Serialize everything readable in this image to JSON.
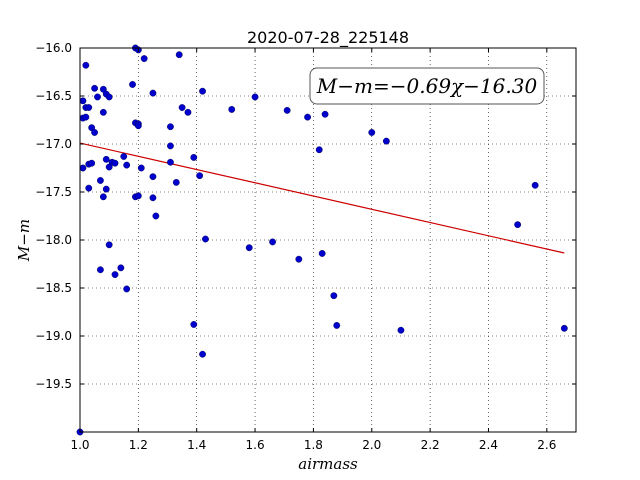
{
  "chart_data": {
    "type": "scatter",
    "title": "2020-07-28_225148",
    "xlabel": "airmass",
    "ylabel": "M−m",
    "xlim": [
      1.0,
      2.7
    ],
    "ylim": [
      -16.0,
      -20.0
    ],
    "y_inverted": true,
    "x_ticks": [
      "1.0",
      "1.2",
      "1.4",
      "1.6",
      "1.8",
      "2.0",
      "2.2",
      "2.4",
      "2.6"
    ],
    "y_ticks": [
      "−16.0",
      "−16.5",
      "−17.0",
      "−17.5",
      "−18.0",
      "−18.5",
      "−19.0",
      "−19.5"
    ],
    "grid": true,
    "annotation": "M−m=−0.69χ−16.30",
    "colors": {
      "points": "#0000cc",
      "fit_line": "#cc0000"
    },
    "fit_line": {
      "slope": -0.69,
      "intercept": -16.3,
      "x_range": [
        1.0,
        2.66
      ]
    },
    "points": [
      [
        1.0,
        -20.0
      ],
      [
        1.01,
        -16.73
      ],
      [
        1.01,
        -16.55
      ],
      [
        1.01,
        -17.25
      ],
      [
        1.02,
        -16.18
      ],
      [
        1.02,
        -16.72
      ],
      [
        1.02,
        -16.62
      ],
      [
        1.03,
        -16.62
      ],
      [
        1.03,
        -17.46
      ],
      [
        1.03,
        -17.21
      ],
      [
        1.04,
        -17.2
      ],
      [
        1.04,
        -16.83
      ],
      [
        1.05,
        -16.42
      ],
      [
        1.05,
        -16.88
      ],
      [
        1.06,
        -16.51
      ],
      [
        1.07,
        -17.38
      ],
      [
        1.07,
        -18.31
      ],
      [
        1.08,
        -17.55
      ],
      [
        1.08,
        -16.67
      ],
      [
        1.08,
        -16.43
      ],
      [
        1.09,
        -16.48
      ],
      [
        1.09,
        -17.47
      ],
      [
        1.09,
        -17.16
      ],
      [
        1.1,
        -17.24
      ],
      [
        1.1,
        -16.51
      ],
      [
        1.1,
        -18.05
      ],
      [
        1.11,
        -17.19
      ],
      [
        1.12,
        -17.2
      ],
      [
        1.12,
        -18.36
      ],
      [
        1.14,
        -18.29
      ],
      [
        1.15,
        -17.13
      ],
      [
        1.16,
        -18.51
      ],
      [
        1.16,
        -17.22
      ],
      [
        1.18,
        -16.38
      ],
      [
        1.19,
        -16.78
      ],
      [
        1.19,
        -17.55
      ],
      [
        1.2,
        -17.54
      ],
      [
        1.2,
        -16.79
      ],
      [
        1.2,
        -16.81
      ],
      [
        1.19,
        -16.0
      ],
      [
        1.2,
        -16.02
      ],
      [
        1.21,
        -17.25
      ],
      [
        1.22,
        -16.11
      ],
      [
        1.25,
        -16.47
      ],
      [
        1.25,
        -17.34
      ],
      [
        1.25,
        -17.56
      ],
      [
        1.26,
        -17.75
      ],
      [
        1.31,
        -16.82
      ],
      [
        1.31,
        -17.02
      ],
      [
        1.31,
        -17.19
      ],
      [
        1.33,
        -17.4
      ],
      [
        1.34,
        -16.07
      ],
      [
        1.35,
        -16.62
      ],
      [
        1.37,
        -16.67
      ],
      [
        1.39,
        -17.14
      ],
      [
        1.39,
        -18.88
      ],
      [
        1.41,
        -17.33
      ],
      [
        1.42,
        -16.45
      ],
      [
        1.42,
        -19.19
      ],
      [
        1.43,
        -17.99
      ],
      [
        1.52,
        -16.64
      ],
      [
        1.58,
        -18.08
      ],
      [
        1.6,
        -16.51
      ],
      [
        1.66,
        -18.02
      ],
      [
        1.71,
        -16.65
      ],
      [
        1.75,
        -18.2
      ],
      [
        1.78,
        -16.72
      ],
      [
        1.82,
        -17.06
      ],
      [
        1.83,
        -18.14
      ],
      [
        1.84,
        -16.69
      ],
      [
        1.87,
        -18.58
      ],
      [
        1.88,
        -18.89
      ],
      [
        2.0,
        -16.88
      ],
      [
        2.05,
        -16.97
      ],
      [
        2.1,
        -18.94
      ],
      [
        2.5,
        -17.84
      ],
      [
        2.56,
        -17.43
      ],
      [
        2.66,
        -18.92
      ]
    ]
  }
}
